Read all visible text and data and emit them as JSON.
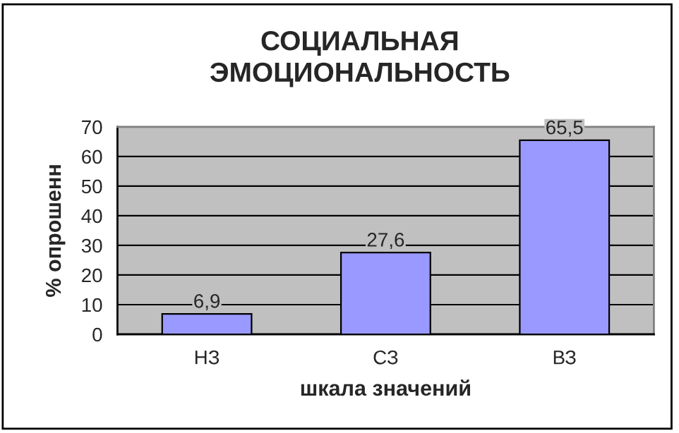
{
  "chart_data": {
    "type": "bar",
    "title": "СОЦИАЛЬНАЯ\nЭМОЦИОНАЛЬНОСТЬ",
    "xlabel": "шкала значений",
    "ylabel": "% опрошенн",
    "categories": [
      "НЗ",
      "СЗ",
      "ВЗ"
    ],
    "values": [
      6.9,
      27.6,
      65.5
    ],
    "value_labels": [
      "6,9",
      "27,6",
      "65,5"
    ],
    "color": "#9999ff",
    "ylim": [
      0,
      70
    ],
    "yticks": [
      0,
      10,
      20,
      30,
      40,
      50,
      60,
      70
    ],
    "grid": "y"
  }
}
